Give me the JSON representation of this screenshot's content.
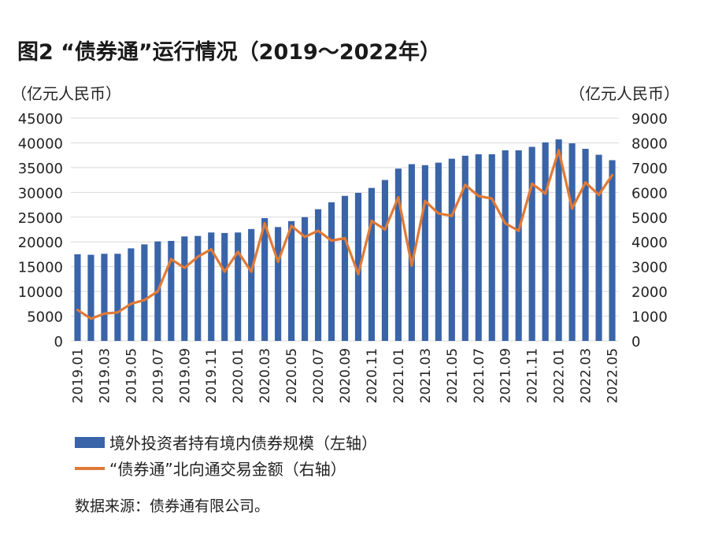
{
  "title": "图2  “债券通”运行情况（2019～2022年）",
  "source": "数据来源：债券通有限公司。",
  "colors": {
    "bar": "#3a64a8",
    "line": "#e07a36",
    "grid": "#d9d9d9"
  },
  "chart_data": {
    "type": "bar+line",
    "title": "图2  “债券通”运行情况（2019～2022年）",
    "left_axis": {
      "label": "（亿元人民币）",
      "min": 0,
      "max": 45000,
      "ticks": [
        "45000",
        "40000",
        "35000",
        "30000",
        "25000",
        "20000",
        "15000",
        "10000",
        "5000",
        "0"
      ]
    },
    "right_axis": {
      "label": "（亿元人民币）",
      "min": 0,
      "max": 9000,
      "ticks": [
        "9000",
        "8000",
        "7000",
        "6000",
        "5000",
        "4000",
        "3000",
        "2000",
        "1000",
        "0"
      ]
    },
    "x_tick_labels": [
      "2019.01",
      "2019.03",
      "2019.05",
      "2019.07",
      "2019.09",
      "2019.11",
      "2020.01",
      "2020.03",
      "2020.05",
      "2020.07",
      "2020.09",
      "2020.11",
      "2021.01",
      "2021.03",
      "2021.05",
      "2021.07",
      "2021.09",
      "2021.11",
      "2022.01",
      "2022.03",
      "2022.05"
    ],
    "categories": [
      "2019.01",
      "2019.02",
      "2019.03",
      "2019.04",
      "2019.05",
      "2019.06",
      "2019.07",
      "2019.08",
      "2019.09",
      "2019.10",
      "2019.11",
      "2019.12",
      "2020.01",
      "2020.02",
      "2020.03",
      "2020.04",
      "2020.05",
      "2020.06",
      "2020.07",
      "2020.08",
      "2020.09",
      "2020.10",
      "2020.11",
      "2020.12",
      "2021.01",
      "2021.02",
      "2021.03",
      "2021.04",
      "2021.05",
      "2021.06",
      "2021.07",
      "2021.08",
      "2021.09",
      "2021.10",
      "2021.11",
      "2021.12",
      "2022.01",
      "2022.02",
      "2022.03",
      "2022.04",
      "2022.05"
    ],
    "series": [
      {
        "name": "境外投资者持有境内债券规模（左轴）",
        "type": "bar",
        "axis": "left",
        "values": [
          17500,
          17400,
          17600,
          17600,
          18700,
          19500,
          20100,
          20200,
          21100,
          21200,
          21900,
          21800,
          21900,
          22600,
          24800,
          23000,
          24200,
          25000,
          26600,
          28000,
          29300,
          29900,
          30900,
          32500,
          34800,
          35700,
          35500,
          36000,
          36800,
          37400,
          37700,
          37700,
          38500,
          38500,
          39200,
          40100,
          40700,
          39900,
          38800,
          37600,
          36500
        ]
      },
      {
        "name": "“债券通”北向通交易金额（右轴）",
        "type": "line",
        "axis": "right",
        "values": [
          1250,
          900,
          1100,
          1150,
          1500,
          1650,
          2000,
          3300,
          2950,
          3400,
          3700,
          2800,
          3600,
          2800,
          4750,
          3200,
          4650,
          4200,
          4450,
          4050,
          4150,
          2700,
          4850,
          4500,
          5800,
          3050,
          5650,
          5150,
          5050,
          6300,
          5850,
          5750,
          4750,
          4450,
          6350,
          5950,
          7700,
          5350,
          6400,
          5900,
          6700
        ]
      }
    ]
  },
  "legend": {
    "bar_label": "境外投资者持有境内债券规模（左轴）",
    "line_label": "“债券通”北向通交易金额（右轴）"
  }
}
